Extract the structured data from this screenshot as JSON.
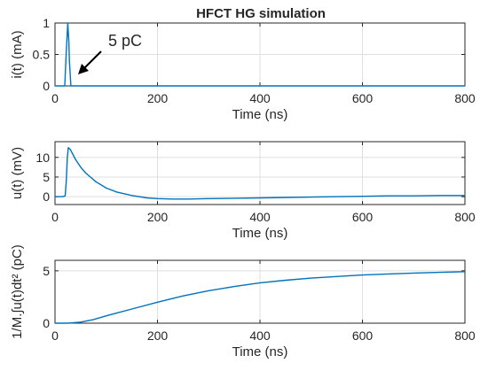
{
  "title": "HFCT HG simulation",
  "annotation": "5 pC",
  "line_color": "#0072BD",
  "chart_data": [
    {
      "type": "line",
      "xlabel": "Time (ns)",
      "ylabel": "i(t) (mA)",
      "xlim": [
        0,
        800
      ],
      "ylim": [
        0,
        1
      ],
      "xticks": [
        "0",
        "200",
        "400",
        "600",
        "800"
      ],
      "yticks": [
        "0",
        "0.5",
        "1"
      ],
      "ytick_values": [
        0,
        0.5,
        1
      ],
      "grid": true,
      "x": [
        0,
        19,
        22,
        25,
        27,
        28,
        31,
        800
      ],
      "y": [
        0,
        0,
        0.55,
        1.0,
        0.7,
        0.4,
        0,
        0
      ]
    },
    {
      "type": "line",
      "xlabel": "Time (ns)",
      "ylabel": "u(t) (mV)",
      "xlim": [
        0,
        800
      ],
      "ylim": [
        -2,
        14
      ],
      "xticks": [
        "0",
        "200",
        "400",
        "600",
        "800"
      ],
      "yticks": [
        "0",
        "5",
        "10"
      ],
      "ytick_values": [
        0,
        5,
        10
      ],
      "grid": true,
      "x": [
        0,
        15,
        20,
        22,
        24,
        26,
        30,
        40,
        50,
        60,
        80,
        100,
        120,
        150,
        180,
        200,
        230,
        260,
        300,
        350,
        400,
        450,
        500,
        550,
        600,
        650,
        700,
        750,
        800
      ],
      "y": [
        0,
        0,
        0.2,
        4,
        10,
        12.5,
        12,
        9.5,
        7.5,
        6,
        3.8,
        2.2,
        1.2,
        0.3,
        -0.3,
        -0.5,
        -0.6,
        -0.6,
        -0.5,
        -0.4,
        -0.3,
        -0.2,
        -0.1,
        0,
        0.1,
        0.2,
        0.2,
        0.3,
        0.3
      ]
    },
    {
      "type": "line",
      "xlabel": "Time (ns)",
      "ylabel": "1/M.∫u(t)dt² (pC)",
      "xlim": [
        0,
        800
      ],
      "ylim": [
        0,
        6
      ],
      "xticks": [
        "0",
        "200",
        "400",
        "600",
        "800"
      ],
      "yticks": [
        "0",
        "5"
      ],
      "ytick_values": [
        0,
        5
      ],
      "grid": true,
      "x": [
        0,
        25,
        50,
        75,
        100,
        150,
        200,
        250,
        300,
        350,
        400,
        450,
        500,
        550,
        600,
        650,
        700,
        750,
        800
      ],
      "y": [
        0,
        0,
        0.1,
        0.35,
        0.7,
        1.35,
        2.0,
        2.6,
        3.1,
        3.5,
        3.85,
        4.1,
        4.3,
        4.45,
        4.6,
        4.7,
        4.78,
        4.85,
        4.92
      ]
    }
  ]
}
